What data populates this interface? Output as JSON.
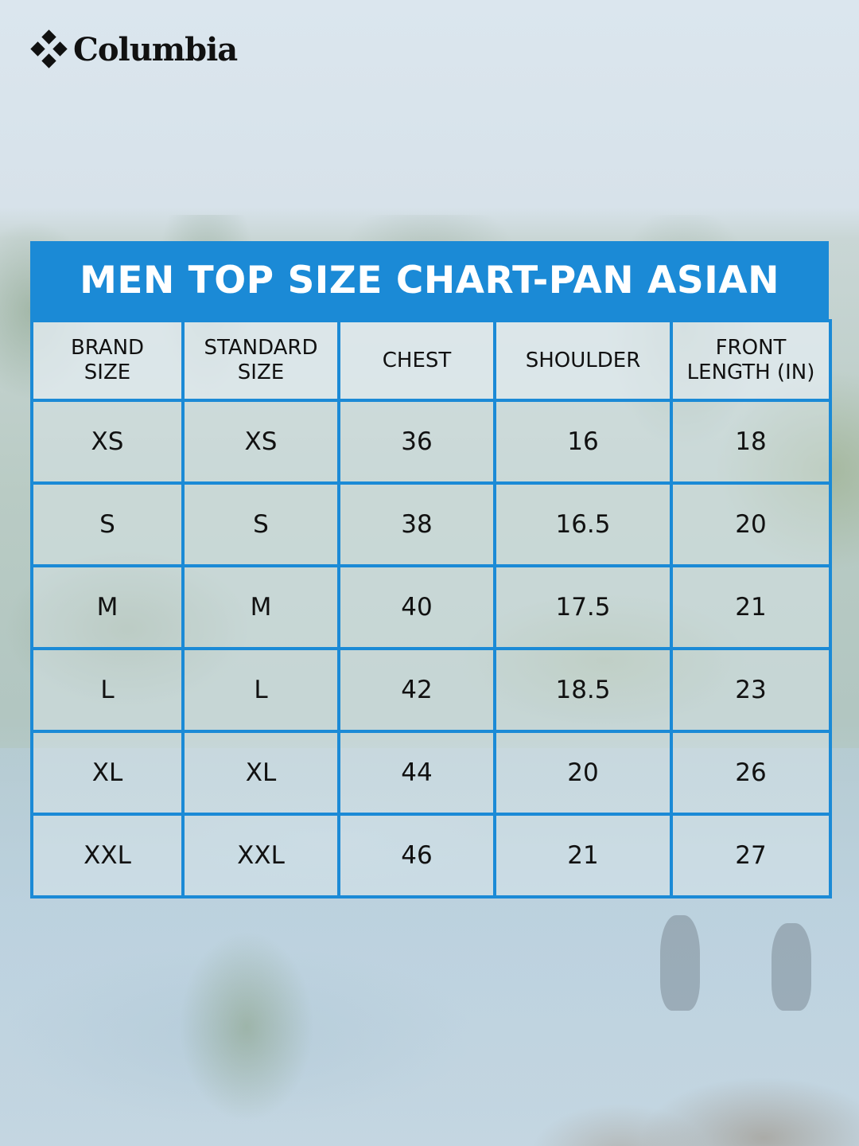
{
  "brand": {
    "logo_text": "Columbia"
  },
  "colors": {
    "accent": "#1b8ad6",
    "title_text": "#ffffff",
    "body_text": "#111111"
  },
  "chart_data": {
    "type": "table",
    "title": "MEN TOP SIZE CHART-PAN ASIAN",
    "columns": [
      {
        "line1": "BRAND",
        "line2": "SIZE"
      },
      {
        "line1": "STANDARD",
        "line2": "SIZE"
      },
      {
        "line1": "CHEST",
        "line2": ""
      },
      {
        "line1": "SHOULDER",
        "line2": ""
      },
      {
        "line1": "FRONT",
        "line2": "LENGTH (IN)"
      }
    ],
    "rows": [
      [
        "XS",
        "XS",
        "36",
        "16",
        "18"
      ],
      [
        "S",
        "S",
        "38",
        "16.5",
        "20"
      ],
      [
        "M",
        "M",
        "40",
        "17.5",
        "21"
      ],
      [
        "L",
        "L",
        "42",
        "18.5",
        "23"
      ],
      [
        "XL",
        "XL",
        "44",
        "20",
        "26"
      ],
      [
        "XXL",
        "XXL",
        "46",
        "21",
        "27"
      ]
    ]
  }
}
